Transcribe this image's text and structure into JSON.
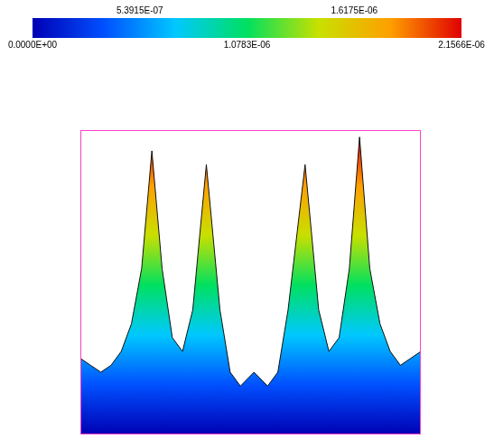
{
  "chart_data": {
    "type": "surface",
    "color_range": [
      0,
      2.1566e-06
    ],
    "color_ticks": [
      {
        "value": 0,
        "label": "0.0000E+00"
      },
      {
        "value": 5.3915e-07,
        "label": "5.3915E-07"
      },
      {
        "value": 1.0783e-06,
        "label": "1.0783E-06"
      },
      {
        "value": 1.6175e-06,
        "label": "1.6175E-06"
      },
      {
        "value": 2.1566e-06,
        "label": "2.1566E-06"
      }
    ],
    "x": [
      0,
      0.03,
      0.06,
      0.09,
      0.12,
      0.15,
      0.18,
      0.21,
      0.24,
      0.27,
      0.3,
      0.33,
      0.37,
      0.41,
      0.44,
      0.47,
      0.51,
      0.55,
      0.58,
      0.61,
      0.66,
      0.7,
      0.73,
      0.76,
      0.79,
      0.82,
      0.85,
      0.88,
      0.91,
      0.94,
      0.97,
      1.0
    ],
    "values": [
      5.5e-07,
      5e-07,
      4.5e-07,
      5e-07,
      6e-07,
      8e-07,
      1.2e-06,
      2.05e-06,
      1.2e-06,
      7e-07,
      6e-07,
      9e-07,
      1.95e-06,
      9e-07,
      4.5e-07,
      3.5e-07,
      4.5e-07,
      3.5e-07,
      4.5e-07,
      9e-07,
      1.95e-06,
      9e-07,
      6e-07,
      7e-07,
      1.2e-06,
      2.15e-06,
      1.2e-06,
      8e-07,
      6e-07,
      5e-07,
      5.5e-07,
      6e-07
    ],
    "xlim": [
      0,
      1
    ],
    "ylim": [
      0,
      2.2e-06
    ],
    "tick_labels": false,
    "grid": false
  }
}
